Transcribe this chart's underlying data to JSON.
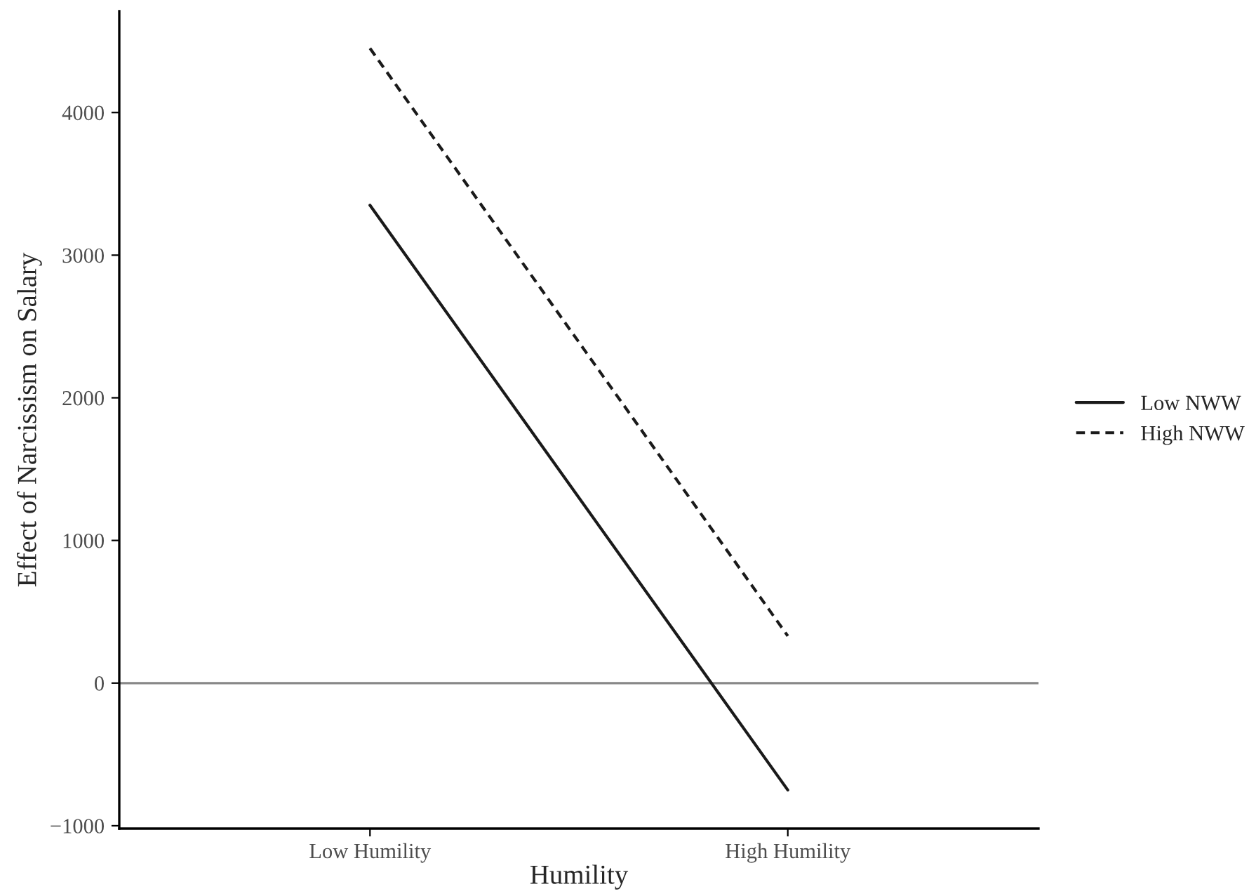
{
  "chart_data": {
    "type": "line",
    "xlabel": "Humility",
    "ylabel": "Effect of Narcissism on Salary",
    "categories": [
      "Low Humility",
      "High Humility"
    ],
    "series": [
      {
        "name": "Low NWW",
        "color": "#1a1a1a",
        "line_style": "solid",
        "values": [
          3350,
          -750
        ]
      },
      {
        "name": "High NWW",
        "color": "#1a1a1a",
        "line_style": "dashed",
        "values": [
          4450,
          330
        ]
      }
    ],
    "ylim": [
      -1020,
      4710
    ],
    "yticks": [
      {
        "value": -1000,
        "label": "−1000"
      },
      0,
      1000,
      2000,
      3000,
      4000
    ],
    "ref_lines": [
      {
        "axis": "y",
        "value": 0,
        "color": "#888888"
      }
    ],
    "grid": false,
    "legend": "right",
    "marker": "none"
  }
}
